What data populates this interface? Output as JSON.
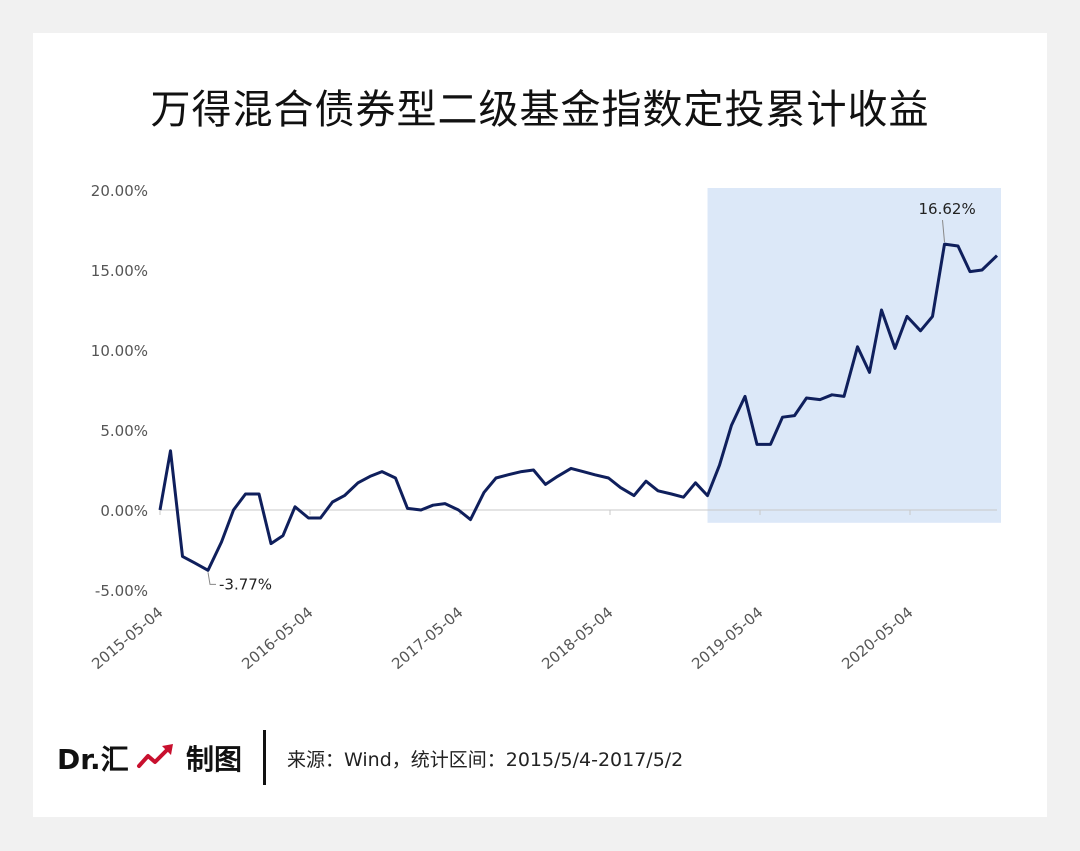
{
  "header": {
    "title": "万得混合债券型二级基金指数定投累计收益"
  },
  "footer": {
    "brand": "Dr.汇",
    "made": "制图",
    "source": "来源：Wind，统计区间：2015/5/4-2017/5/2"
  },
  "colors": {
    "line": "#0f1f5c",
    "highlight": "#dce8f8",
    "axis_text": "#555555",
    "axis_line": "#c8c8c8",
    "brand_red": "#c8102e"
  },
  "chart_data": {
    "type": "line",
    "title": "万得混合债券型二级基金指数定投累计收益",
    "xlabel": "",
    "ylabel": "",
    "ylim": [
      -5,
      20
    ],
    "yticks": [
      "-5.00%",
      "0.00%",
      "5.00%",
      "10.00%",
      "15.00%",
      "20.00%"
    ],
    "ytick_values": [
      -5,
      0,
      5,
      10,
      15,
      20
    ],
    "xticks": [
      "2015-05-04",
      "2016-05-04",
      "2017-05-04",
      "2018-05-04",
      "2019-05-04",
      "2020-05-04"
    ],
    "xtick_positions": [
      2015.34,
      2016.34,
      2017.34,
      2018.34,
      2019.34,
      2020.34
    ],
    "xlim": [
      2015.34,
      2020.92
    ],
    "highlight_range": [
      2018.99,
      2020.92
    ],
    "grid": false,
    "legend": "none",
    "series": [
      {
        "x": [
          2015.34,
          2015.41,
          2015.49,
          2015.57,
          2015.66,
          2015.75,
          2015.83,
          2015.91,
          2016.0,
          2016.08,
          2016.16,
          2016.24,
          2016.33,
          2016.41,
          2016.49,
          2016.57,
          2016.66,
          2016.74,
          2016.82,
          2016.91,
          2016.99,
          2017.08,
          2017.16,
          2017.24,
          2017.33,
          2017.41,
          2017.5,
          2017.58,
          2017.66,
          2017.75,
          2017.83,
          2017.91,
          2017.99,
          2018.08,
          2018.16,
          2018.24,
          2018.33,
          2018.41,
          2018.5,
          2018.58,
          2018.66,
          2018.75,
          2018.83,
          2018.91,
          2018.99,
          2019.07,
          2019.15,
          2019.24,
          2019.32,
          2019.41,
          2019.49,
          2019.57,
          2019.65,
          2019.74,
          2019.82,
          2019.9,
          2019.99,
          2020.07,
          2020.15,
          2020.24,
          2020.32,
          2020.41,
          2020.49,
          2020.57,
          2020.66,
          2020.74,
          2020.82,
          2020.92
        ],
        "values": [
          0.0,
          3.7,
          -2.9,
          -3.3,
          -3.77,
          -2.0,
          0.0,
          1.0,
          1.0,
          -2.1,
          -1.6,
          0.2,
          -0.5,
          -0.5,
          0.5,
          0.9,
          1.7,
          2.1,
          2.4,
          2.0,
          0.1,
          0.0,
          0.3,
          0.4,
          0.0,
          -0.6,
          1.1,
          2.0,
          2.2,
          2.4,
          2.5,
          1.6,
          2.1,
          2.6,
          2.4,
          2.2,
          2.0,
          1.4,
          0.9,
          1.8,
          1.2,
          1.0,
          0.8,
          1.7,
          0.9,
          2.8,
          5.3,
          7.1,
          4.1,
          4.1,
          5.8,
          5.9,
          7.0,
          6.9,
          7.2,
          7.1,
          10.2,
          8.6,
          12.5,
          10.1,
          12.1,
          11.2,
          12.1,
          16.62,
          16.5,
          14.9,
          15.0,
          15.9
        ]
      }
    ],
    "annotations": [
      {
        "text": "16.62%",
        "x": 2020.57,
        "y": 16.62
      },
      {
        "text": "-3.77%",
        "x": 2015.66,
        "y": -3.77
      }
    ]
  }
}
